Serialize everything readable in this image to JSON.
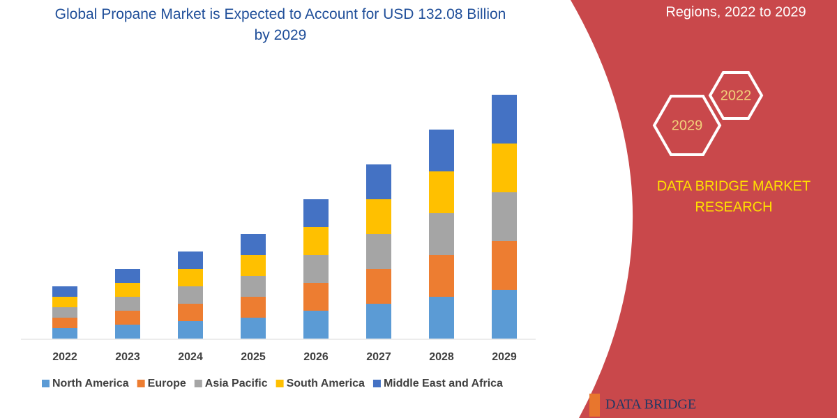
{
  "chart_data": {
    "type": "bar",
    "stacked": true,
    "title": "Global Propane Market is Expected to Account for USD 132.08 Billion by 2029",
    "categories": [
      "2022",
      "2023",
      "2024",
      "2025",
      "2026",
      "2027",
      "2028",
      "2029"
    ],
    "series": [
      {
        "name": "North America",
        "color": "#5b9bd5",
        "values": [
          15,
          20,
          25,
          30,
          40,
          50,
          60,
          70
        ]
      },
      {
        "name": "Europe",
        "color": "#ed7d31",
        "values": [
          15,
          20,
          25,
          30,
          40,
          50,
          60,
          70
        ]
      },
      {
        "name": "Asia Pacific",
        "color": "#a5a5a5",
        "values": [
          15,
          20,
          25,
          30,
          40,
          50,
          60,
          70
        ]
      },
      {
        "name": "South America",
        "color": "#ffc000",
        "values": [
          15,
          20,
          25,
          30,
          40,
          50,
          60,
          70
        ]
      },
      {
        "name": "Middle East and Africa",
        "color": "#4472c4",
        "values": [
          15,
          20,
          25,
          30,
          40,
          50,
          60,
          70
        ]
      }
    ],
    "legend": "bottom"
  },
  "side_panel": {
    "heading": "Regions, 2022 to 2029",
    "hexagons": [
      "2022",
      "2029"
    ],
    "brand": [
      "DATA BRIDGE MARKET",
      "RESEARCH"
    ]
  },
  "footer_logo": "DATA BRIDGE"
}
